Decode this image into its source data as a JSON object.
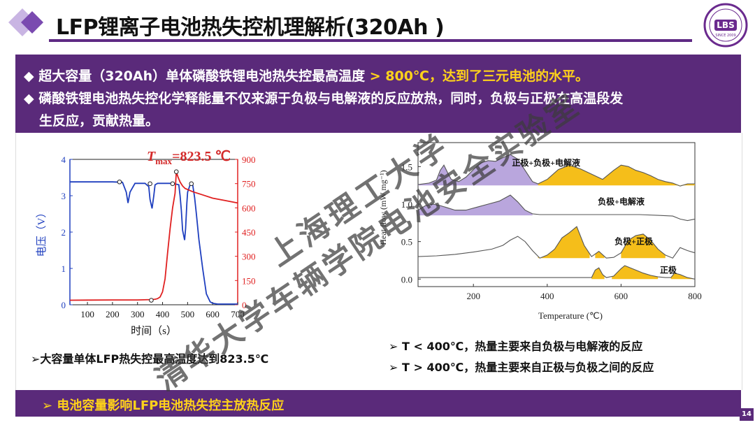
{
  "header": {
    "title": "LFP锂离子电池热失控机理解析(320Ah )",
    "logo_text": "LBS",
    "logo_small": "SINCE 2009",
    "page_number": "14"
  },
  "bullets": {
    "b1_prefix": "◆ 超大容量（320Ah）单体磷酸铁锂电池热失控最高温度",
    "b1_highlight": " > 800℃，达到了三元电池的水平。",
    "b2_line1": "◆ 磷酸铁锂电池热失控化学释能量不仅来源于负极与电解液的反应放热，同时，负极与正极在高温段发",
    "b2_line2": "生反应，贡献热量。"
  },
  "notes": {
    "left": "➢大容量单体LFP热失控最高温度达到823.5℃",
    "right1": "➢ T < 400℃，热量主要来自负极与电解液的反应",
    "right2": "➢ T > 400℃，热量主要来自正极与负极之间的反应"
  },
  "bottom": {
    "text": "➢  电池容量影响LFP电池热失控主放热反应"
  },
  "watermark": {
    "line1": "上海理工大学",
    "line2": "清华大学车辆学院电池安全实验室"
  },
  "chart_data": [
    {
      "type": "line",
      "tmax_prefix": "T",
      "tmax_sub": "max",
      "tmax_value": "=823.5 ℃",
      "xlabel": "时间（s）",
      "ylabel_left": "电压（V）",
      "ylabel_right": "温度（℃）",
      "xlim": [
        30,
        700
      ],
      "xticks": [
        100,
        200,
        300,
        400,
        500,
        600,
        700
      ],
      "ylim_left": [
        0,
        4
      ],
      "yticks_left": [
        0,
        1,
        2,
        3,
        4
      ],
      "ylim_right": [
        0,
        900
      ],
      "yticks_right": [
        0,
        150,
        300,
        450,
        600,
        750,
        900
      ],
      "colors": {
        "voltage": "#1f3fbf",
        "temperature": "#e02020",
        "annotation": "#d42a2a"
      },
      "series": [
        {
          "name": "电压",
          "axis": "left",
          "x": [
            30,
            100,
            200,
            240,
            255,
            262,
            270,
            290,
            330,
            345,
            350,
            358,
            365,
            370,
            380,
            400,
            440,
            465,
            470,
            475,
            480,
            488,
            492,
            497,
            500,
            510,
            520,
            528,
            535,
            545,
            560,
            575,
            590,
            600,
            620,
            700
          ],
          "y": [
            3.38,
            3.38,
            3.38,
            3.37,
            3.1,
            2.8,
            3.1,
            3.34,
            3.34,
            3.25,
            2.9,
            2.65,
            3.0,
            3.3,
            3.34,
            3.34,
            3.34,
            3.3,
            3.0,
            2.6,
            2.05,
            1.78,
            2.1,
            2.8,
            3.1,
            3.3,
            3.32,
            2.95,
            2.5,
            1.8,
            1.0,
            0.3,
            0.08,
            0.04,
            0.02,
            0.02
          ]
        },
        {
          "name": "温度",
          "axis": "right",
          "x": [
            30,
            100,
            200,
            300,
            350,
            370,
            380,
            390,
            400,
            410,
            420,
            430,
            440,
            450,
            455,
            462,
            470,
            480,
            490,
            520,
            560,
            600,
            650,
            700
          ],
          "y": [
            28,
            29,
            30,
            30,
            32,
            34,
            38,
            48,
            80,
            160,
            320,
            470,
            600,
            690,
            823.5,
            790,
            760,
            735,
            720,
            700,
            680,
            660,
            645,
            630
          ]
        }
      ],
      "markers": {
        "left": {
          "x": [
            228,
            350,
            440,
            515
          ],
          "y": [
            3.38,
            3.33,
            3.33,
            3.33
          ]
        },
        "right": {
          "x": [
            355,
            455
          ],
          "y": [
            28,
            823.5
          ]
        }
      }
    },
    {
      "type": "area",
      "xlabel": "Temperature (℃)",
      "ylabel": "Heat flow (mW mg⁻¹)",
      "xlim": [
        50,
        800
      ],
      "xticks": [
        200,
        400,
        600,
        800
      ],
      "yticks": [
        0.0,
        0.5,
        1.0,
        1.5
      ],
      "colors": {
        "low": "#b9a6dd",
        "high": "#f5be1a",
        "line": "#555555"
      },
      "series": [
        {
          "name": "正极+负极+电解液",
          "baseline": 1.25,
          "x": [
            50,
            80,
            100,
            110,
            120,
            130,
            140,
            160,
            180,
            200,
            220,
            240,
            260,
            280,
            300,
            320,
            340,
            360,
            375,
            400,
            430,
            460,
            490,
            520,
            550,
            580,
            600,
            620,
            640,
            660,
            680,
            700,
            720,
            740,
            760,
            780,
            800
          ],
          "y": [
            1.26,
            1.28,
            1.32,
            1.45,
            1.52,
            1.42,
            1.33,
            1.3,
            1.36,
            1.46,
            1.55,
            1.58,
            1.57,
            1.62,
            1.66,
            1.6,
            1.45,
            1.3,
            1.27,
            1.33,
            1.46,
            1.52,
            1.47,
            1.4,
            1.33,
            1.45,
            1.52,
            1.5,
            1.45,
            1.42,
            1.38,
            1.33,
            1.3,
            1.28,
            1.24,
            1.27,
            1.27
          ]
        },
        {
          "name": "负极+电解液",
          "baseline": 0.85,
          "x": [
            50,
            70,
            90,
            110,
            130,
            150,
            180,
            210,
            240,
            270,
            300,
            320,
            340,
            360,
            380,
            400,
            450,
            500,
            550,
            600,
            650,
            700,
            740,
            760,
            780,
            800
          ],
          "y": [
            0.92,
            0.98,
            1.0,
            0.98,
            0.95,
            0.92,
            0.92,
            0.96,
            1.0,
            1.04,
            1.12,
            1.03,
            0.92,
            0.87,
            0.86,
            0.86,
            0.86,
            0.86,
            0.86,
            0.86,
            0.86,
            0.85,
            0.84,
            0.8,
            0.78,
            0.8
          ]
        },
        {
          "name": "负极+正极",
          "baseline": 0.28,
          "x": [
            50,
            100,
            150,
            200,
            250,
            280,
            300,
            320,
            340,
            360,
            380,
            400,
            420,
            440,
            460,
            480,
            500,
            520,
            540,
            560,
            580,
            600,
            620,
            640,
            660,
            680,
            700,
            720,
            740,
            760,
            780,
            800
          ],
          "y": [
            0.3,
            0.31,
            0.33,
            0.36,
            0.4,
            0.45,
            0.52,
            0.57,
            0.5,
            0.38,
            0.28,
            0.32,
            0.4,
            0.55,
            0.62,
            0.7,
            0.45,
            0.3,
            0.37,
            0.28,
            0.29,
            0.35,
            0.52,
            0.58,
            0.6,
            0.52,
            0.4,
            0.32,
            0.28,
            0.42,
            0.38,
            0.35
          ]
        },
        {
          "name": "正极",
          "baseline": 0.0,
          "x": [
            50,
            100,
            200,
            300,
            400,
            480,
            520,
            530,
            540,
            550,
            560,
            580,
            600,
            610,
            620,
            640,
            660,
            680,
            700,
            720,
            735,
            745,
            760,
            780,
            800
          ],
          "y": [
            0.02,
            0.02,
            0.02,
            0.02,
            0.02,
            0.02,
            0.02,
            0.12,
            0.15,
            0.06,
            0.02,
            0.04,
            0.14,
            0.18,
            0.16,
            0.12,
            0.08,
            0.05,
            0.03,
            0.02,
            0.02,
            0.08,
            0.06,
            0.02,
            0.0
          ]
        }
      ],
      "fill_ranges": {
        "正极+负极+电解液": [
          {
            "from": 50,
            "to": 375,
            "color": "low"
          },
          {
            "from": 375,
            "to": 800,
            "color": "high"
          }
        ],
        "负极+电解液": [
          {
            "from": 50,
            "to": 360,
            "color": "low"
          }
        ],
        "负极+正极": [
          {
            "from": 375,
            "to": 515,
            "color": "high"
          },
          {
            "from": 530,
            "to": 555,
            "color": "high"
          },
          {
            "from": 600,
            "to": 720,
            "color": "high"
          }
        ],
        "正极": [
          {
            "from": 520,
            "to": 555,
            "color": "high"
          },
          {
            "from": 575,
            "to": 700,
            "color": "high"
          },
          {
            "from": 735,
            "to": 800,
            "color": "high"
          }
        ]
      }
    }
  ]
}
